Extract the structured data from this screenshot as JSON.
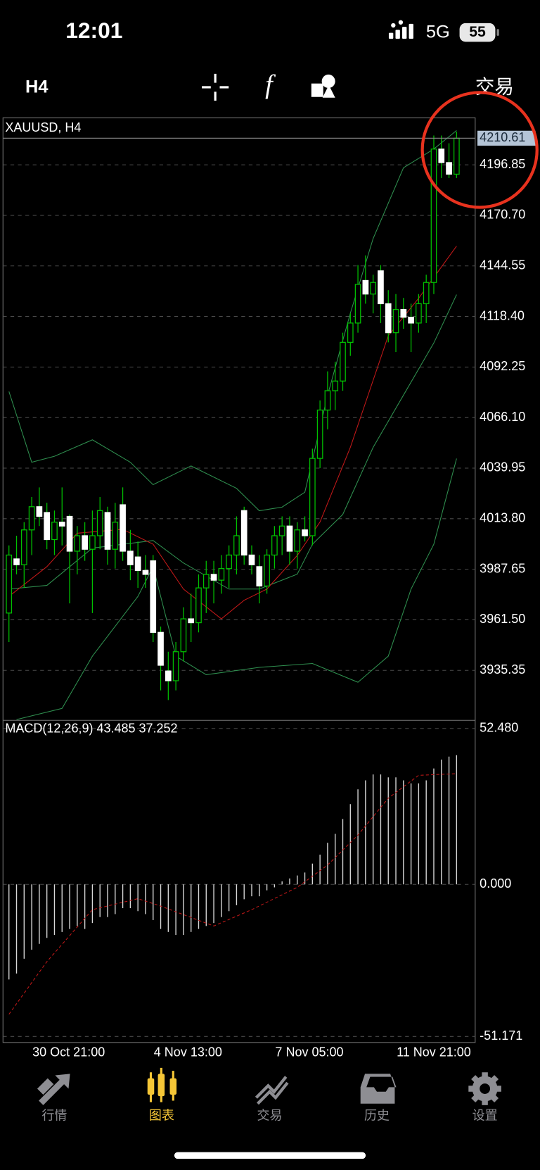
{
  "status_bar": {
    "time": "12:01",
    "network": "5G",
    "battery": "55"
  },
  "toolbar": {
    "timeframe": "H4",
    "function_icon": "f",
    "trade_button": "交易"
  },
  "chart_data": [
    {
      "type": "candlestick",
      "title": "XAUUSD, H4",
      "categories": [
        null,
        null,
        null,
        "30 Oct 21:00",
        null,
        null,
        null,
        null,
        null,
        null,
        null,
        null,
        null,
        null,
        null,
        null,
        null,
        null,
        null,
        "4 Nov 13:00",
        null,
        null,
        null,
        null,
        null,
        null,
        null,
        null,
        null,
        null,
        null,
        null,
        null,
        null,
        null,
        "7 Nov 05:00",
        null,
        null,
        null,
        null,
        null,
        null,
        null,
        null,
        null,
        null,
        null,
        null,
        null,
        null,
        null,
        "11 Nov 21:00",
        null,
        null,
        null,
        null,
        null,
        null,
        null,
        null
      ],
      "open": [
        3965,
        3993,
        3990,
        4008,
        4020,
        4017,
        4003,
        4012,
        4015,
        3997,
        4005,
        3998,
        4005,
        4017,
        3998,
        4021,
        3997,
        3994,
        3987,
        3992,
        3955,
        3935,
        3930,
        3945,
        3962,
        3960,
        3978,
        3985,
        3982,
        3988,
        3995,
        4018,
        3995,
        3989,
        3979,
        3995,
        4005,
        4010,
        3997,
        4008,
        4005,
        4045,
        4070,
        4080,
        4085,
        4105,
        4115,
        4137,
        4130,
        4142,
        4125,
        4110,
        4122,
        4118,
        4115,
        4125,
        4136,
        4205,
        4198,
        4192
      ],
      "high": [
        4000,
        4005,
        4012,
        4025,
        4030,
        4022,
        4018,
        4030,
        4016,
        4010,
        4012,
        4018,
        4025,
        4020,
        4022,
        4030,
        4008,
        4002,
        3995,
        3995,
        3958,
        3945,
        3950,
        3968,
        3975,
        3985,
        3992,
        3992,
        3995,
        4000,
        4015,
        4020,
        4000,
        3995,
        3998,
        4010,
        4015,
        4015,
        4012,
        4015,
        4050,
        4075,
        4090,
        4095,
        4110,
        4120,
        4145,
        4150,
        4140,
        4145,
        4132,
        4130,
        4128,
        4125,
        4130,
        4140,
        4212,
        4212,
        4208,
        4214
      ],
      "low": [
        3950,
        3985,
        3978,
        3995,
        4010,
        3998,
        3995,
        4000,
        3970,
        3985,
        3992,
        3965,
        3998,
        3990,
        3988,
        3992,
        3982,
        3978,
        3978,
        3950,
        3925,
        3920,
        3925,
        3940,
        3950,
        3955,
        3965,
        3970,
        3975,
        3978,
        3985,
        3990,
        3985,
        3970,
        3975,
        3988,
        3995,
        3990,
        3988,
        4002,
        4000,
        4040,
        4060,
        4070,
        4080,
        4098,
        4110,
        4125,
        4120,
        4115,
        4105,
        4100,
        4112,
        4100,
        4110,
        4115,
        4130,
        4190,
        4190,
        4190
      ],
      "close": [
        3995,
        3990,
        4008,
        4020,
        4015,
        4003,
        4012,
        4010,
        3997,
        4005,
        3998,
        4005,
        4018,
        3998,
        4012,
        3997,
        3990,
        3987,
        3985,
        3955,
        3938,
        3930,
        3945,
        3962,
        3960,
        3978,
        3985,
        3982,
        3988,
        3995,
        4005,
        3995,
        3990,
        3979,
        3995,
        4005,
        4010,
        3997,
        4008,
        4005,
        4045,
        4070,
        4080,
        4085,
        4105,
        4115,
        4135,
        4130,
        4136,
        4125,
        4110,
        4122,
        4118,
        4115,
        4125,
        4136,
        4205,
        4198,
        4192,
        4210.61
      ],
      "colors": {
        "up": "#00c000",
        "down": "#ffffff"
      },
      "overlays": [
        {
          "color": "#2f8f4f",
          "x": [
            0,
            3,
            6,
            11,
            16,
            19,
            24,
            30,
            33,
            36,
            39,
            42,
            45,
            48,
            52,
            56,
            59
          ],
          "values": [
            4079.6,
            4043.0,
            4046.1,
            4054.6,
            4043.0,
            4031.4,
            4041.1,
            4029.5,
            4017.9,
            4019.8,
            4027.5,
            4077.7,
            4120.1,
            4158.7,
            4195.3,
            4205.0,
            4214.6
          ]
        },
        {
          "color": "#2f8f4f",
          "x": [
            0,
            5,
            11,
            19,
            23,
            29,
            33,
            38,
            40,
            44,
            48,
            52,
            56,
            59
          ],
          "values": [
            3977.4,
            3979.3,
            3998.6,
            4002.5,
            3990.9,
            3977.4,
            3977.4,
            3985.1,
            4000.6,
            4016.0,
            4050.7,
            4077.7,
            4104.7,
            4129.7
          ]
        },
        {
          "color": "#2f8f4f",
          "x": [
            1,
            7,
            11,
            17,
            19,
            22,
            26,
            33,
            40,
            46,
            50,
            53,
            56,
            59
          ],
          "values": [
            3909.9,
            3915.7,
            3942.7,
            3973.6,
            3989.0,
            3942.7,
            3933.1,
            3936.9,
            3938.9,
            3929.2,
            3942.7,
            3977.4,
            4000.6,
            4044.9
          ]
        },
        {
          "color": "#c01818",
          "x": [
            0,
            5,
            9,
            15,
            19,
            23,
            28,
            31,
            34,
            38,
            41,
            45,
            50,
            54,
            59
          ],
          "values": [
            3973.6,
            3989.0,
            4006.3,
            4008.3,
            4000.6,
            3977.4,
            3962.0,
            3971.6,
            3977.4,
            3994.8,
            4012.1,
            4050.7,
            4108.5,
            4127.8,
            4154.8
          ]
        }
      ],
      "ylim": [
        3909.5,
        4221.15
      ],
      "yticks": [
        4196.85,
        {
          "value": 4170.7,
          "label": "4170.70"
        },
        4144.55,
        {
          "value": 4118.4,
          "label": "4118.40"
        },
        4092.25,
        {
          "value": 4066.1,
          "label": "4066.10"
        },
        4039.95,
        {
          "value": 4013.8,
          "label": "4013.80"
        },
        3987.65,
        {
          "value": 3961.5,
          "label": "3961.50"
        },
        3935.35
      ],
      "grid": true
    },
    {
      "type": "macd",
      "title": "MACD(12,26,9) 43.485 37.252",
      "values": [
        -32,
        -30,
        -25,
        -22,
        -20,
        -18,
        -17,
        -16,
        -15,
        -14,
        -15,
        -13,
        -11,
        -11,
        -10,
        -8,
        -8,
        -9,
        -10,
        -12,
        -15,
        -16,
        -17,
        -17,
        -16,
        -15,
        -14,
        -13,
        -11,
        -9,
        -7,
        -5,
        -4,
        -4,
        -2,
        -1,
        1,
        2,
        3,
        4,
        7,
        10,
        14,
        17,
        22,
        27,
        32,
        35,
        37,
        37,
        36,
        36,
        35,
        34,
        34,
        35,
        39,
        42,
        43,
        43.485
      ],
      "color": "#d8d8d8",
      "signal": {
        "color": "#c01818",
        "x": [
          0,
          5,
          11,
          17,
          20,
          27,
          32,
          38,
          42,
          46,
          50,
          54,
          59
        ],
        "values": [
          -43.7,
          -26,
          -8.5,
          -4.8,
          -7.3,
          -14,
          -8.5,
          -1,
          6.5,
          16.6,
          29,
          36.7,
          37.252
        ]
      },
      "ylim": [
        -53.2,
        55.2
      ],
      "yticks": [
        {
          "value": 52.48,
          "label": "52.480"
        },
        {
          "value": 0,
          "label": "0.000"
        },
        -51.171
      ]
    }
  ],
  "tabs": {
    "items": [
      "行情",
      "图表",
      "交易",
      "历史",
      "设置"
    ],
    "active": 1
  }
}
